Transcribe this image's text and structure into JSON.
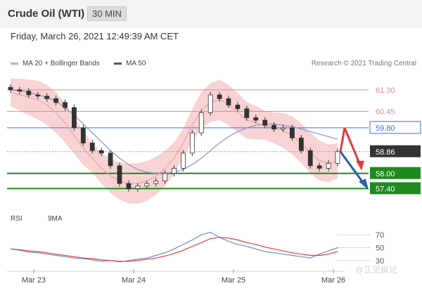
{
  "header": {
    "title": "Crude Oil (WTI)",
    "timeframe": "30 MIN"
  },
  "timestamp": "Friday, March 26, 2021 12:49:39 AM CET",
  "legend": {
    "ma20_bb": "MA 20 + Bollinger Bands",
    "ma50": "MA 50",
    "credit": "Research © 2021 Trading Central"
  },
  "rsi_legend": {
    "rsi": "RSI",
    "ma9": "9MA"
  },
  "colors": {
    "resistance": "#e8888a",
    "pivot_blue": "#3d6fd6",
    "support": "#1f8a1f",
    "ma20": "#f0a0a0",
    "bb_fill": "#f6c4c4",
    "ma50": "#8b93c9",
    "candle_up": "#ffffff",
    "candle_down": "#333333",
    "rsi": "#6a8ad8",
    "rsi_ma": "#e23c3c",
    "arrow_up": "#e23c3c",
    "arrow_down": "#2d5ea8"
  },
  "watermark": "@正见纵论",
  "chart_data": [
    {
      "type": "line",
      "title": "Crude Oil (WTI) 30 MIN",
      "x_ticks": [
        "Mar 23",
        "Mar 24",
        "Mar 25",
        "Mar 26"
      ],
      "ylim": [
        56.8,
        61.85
      ],
      "levels": [
        {
          "label": "61.30",
          "value": 61.3,
          "kind": "resistance"
        },
        {
          "label": "60.45",
          "value": 60.45,
          "kind": "resistance"
        },
        {
          "label": "59.80",
          "value": 59.8,
          "kind": "pivot"
        },
        {
          "label": "58.86",
          "value": 58.86,
          "kind": "last"
        },
        {
          "label": "58.00",
          "value": 58.0,
          "kind": "support"
        },
        {
          "label": "57.40",
          "value": 57.4,
          "kind": "support"
        }
      ],
      "series": [
        {
          "name": "MA 20 + Bollinger Bands",
          "values": [
            61.2,
            61.1,
            61.0,
            60.9,
            60.7,
            60.4,
            60.0,
            59.5,
            59.0,
            58.6,
            58.2,
            57.9,
            57.7,
            57.6,
            57.6,
            57.7,
            57.9,
            58.2,
            58.6,
            59.2,
            59.9,
            60.5,
            60.8,
            60.9,
            60.7,
            60.4,
            60.1,
            60.0,
            59.9,
            59.8,
            59.7,
            59.5,
            59.2,
            58.8,
            58.5,
            58.4,
            58.5
          ]
        },
        {
          "name": "MA 50",
          "values": [
            61.3,
            61.25,
            61.2,
            61.1,
            61.0,
            60.85,
            60.6,
            60.3,
            59.95,
            59.6,
            59.25,
            58.9,
            58.6,
            58.35,
            58.15,
            58.05,
            58.0,
            58.0,
            58.05,
            58.15,
            58.35,
            58.6,
            58.9,
            59.2,
            59.45,
            59.65,
            59.8,
            59.9,
            59.95,
            59.95,
            59.9,
            59.85,
            59.75,
            59.65,
            59.55,
            59.45,
            59.35
          ]
        }
      ],
      "candles_close": [
        61.3,
        61.25,
        61.1,
        61.05,
        60.95,
        60.8,
        60.6,
        59.8,
        59.2,
        58.9,
        58.8,
        58.3,
        57.6,
        57.4,
        57.5,
        57.6,
        57.7,
        58.0,
        58.2,
        58.8,
        59.6,
        60.4,
        61.1,
        60.95,
        60.7,
        60.55,
        60.2,
        60.1,
        59.9,
        59.75,
        59.8,
        59.4,
        58.9,
        58.3,
        58.2,
        58.4,
        58.86
      ],
      "forecast": [
        {
          "direction": "up",
          "from": 58.86,
          "to": 59.8
        },
        {
          "direction": "up-then-down",
          "from": 59.8,
          "to": 58.0
        },
        {
          "direction": "down",
          "from": 58.86,
          "to": 57.4
        }
      ]
    },
    {
      "type": "line",
      "title": "RSI",
      "y_ticks": [
        "70",
        "50",
        "30"
      ],
      "ylim": [
        20,
        80
      ],
      "series": [
        {
          "name": "RSI",
          "values": [
            48,
            46,
            43,
            42,
            40,
            38,
            36,
            34,
            33,
            31,
            29,
            30,
            28,
            30,
            32,
            34,
            38,
            42,
            48,
            55,
            62,
            70,
            74,
            66,
            60,
            55,
            52,
            48,
            44,
            42,
            40,
            38,
            36,
            34,
            40,
            45,
            50
          ]
        },
        {
          "name": "9MA",
          "values": [
            48,
            47,
            45,
            44,
            42,
            40,
            38,
            36,
            34,
            33,
            31,
            30,
            29,
            29,
            30,
            32,
            34,
            37,
            41,
            46,
            52,
            58,
            64,
            66,
            65,
            62,
            58,
            55,
            51,
            48,
            45,
            42,
            40,
            38,
            38,
            40,
            44
          ]
        }
      ]
    }
  ]
}
